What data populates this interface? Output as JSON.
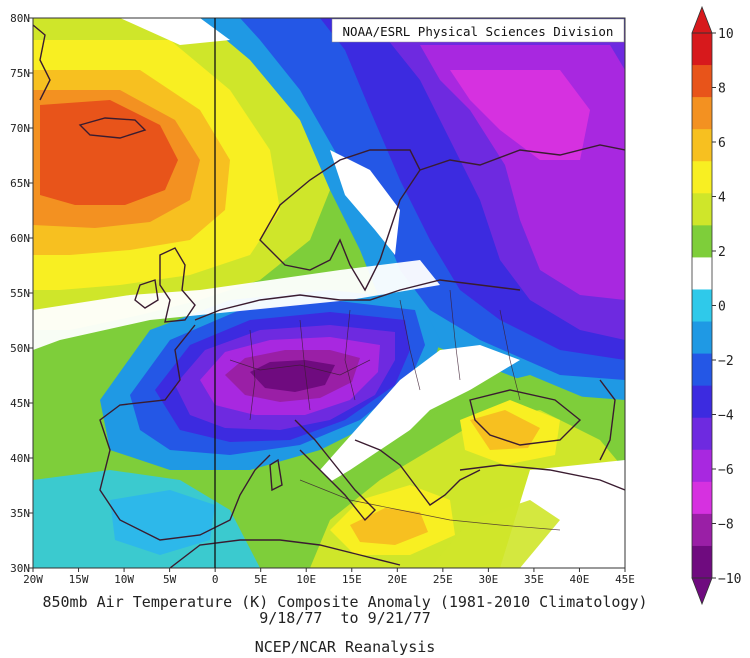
{
  "credit": "NOAA/ESRL Physical Sciences Division",
  "caption": {
    "title": "850mb Air Temperature (K) Composite Anomaly (1981-2010 Climatology)",
    "dates": "9/18/77  to 9/21/77",
    "source": "NCEP/NCAR Reanalysis"
  },
  "map": {
    "lon_range": [
      -20,
      45
    ],
    "lat_range": [
      30,
      80
    ],
    "lon_ticks": [
      "20W",
      "15W",
      "10W",
      "5W",
      "0",
      "5E",
      "10E",
      "15E",
      "20E",
      "25E",
      "30E",
      "35E",
      "40E",
      "45E"
    ],
    "lat_ticks": [
      "30N",
      "35N",
      "40N",
      "45N",
      "50N",
      "55N",
      "60N",
      "65N",
      "70N",
      "75N",
      "80N"
    ],
    "prime_meridian_line": true,
    "anomaly_centers": [
      {
        "lon": -12,
        "lat": 70,
        "value": 8
      },
      {
        "lon": 8,
        "lat": 47.5,
        "value": -9
      },
      {
        "lon": 29,
        "lat": 71,
        "value": -8
      },
      {
        "lon": 20,
        "lat": 35,
        "value": 4
      },
      {
        "lon": 30,
        "lat": 42,
        "value": 4
      }
    ]
  },
  "colorbar": {
    "labels": [
      "10",
      "8",
      "6",
      "4",
      "2",
      "0",
      "−2",
      "−4",
      "−6",
      "−8",
      "−10"
    ],
    "colors": [
      "#d7191c",
      "#e8541a",
      "#f39121",
      "#f7c020",
      "#f8ef22",
      "#cfe62a",
      "#7ece3a",
      "#ffffff",
      "#2fc9ea",
      "#1f99e4",
      "#2457e6",
      "#3c2be0",
      "#6e2ae0",
      "#a828e0",
      "#d631e0",
      "#9a1fa6",
      "#6f0b7f"
    ],
    "min": -10,
    "max": 10
  }
}
